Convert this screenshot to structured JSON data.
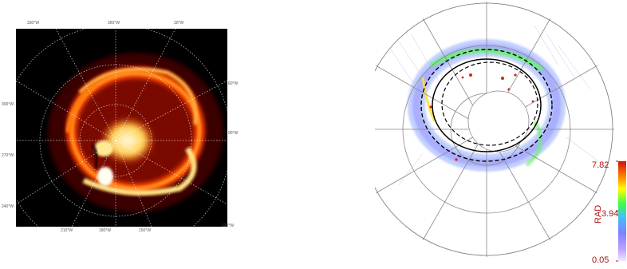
{
  "left_image": {
    "longitude_labels": {
      "top_left": "330°W",
      "top_mid": "360°W",
      "top_right": "30°W",
      "right_upper": "60°W",
      "left_upper": "300°W",
      "right_mid": "90°W",
      "left_mid": "270°W",
      "left_lower": "240°W",
      "bottom_left": "210°W",
      "bottom_mid": "180°W",
      "bottom_right": "150°W",
      "right_lower": "120°W"
    }
  },
  "right_image": {
    "colorbar": {
      "title": "RAD",
      "max_label": "7.82",
      "mid_label": "3.94",
      "min_label": "0.05",
      "colors": [
        "#d01010",
        "#ff8000",
        "#ffff00",
        "#40ff40",
        "#40c0ff",
        "#8080ff",
        "#c0a0ff",
        "#f0e8ff"
      ]
    }
  }
}
